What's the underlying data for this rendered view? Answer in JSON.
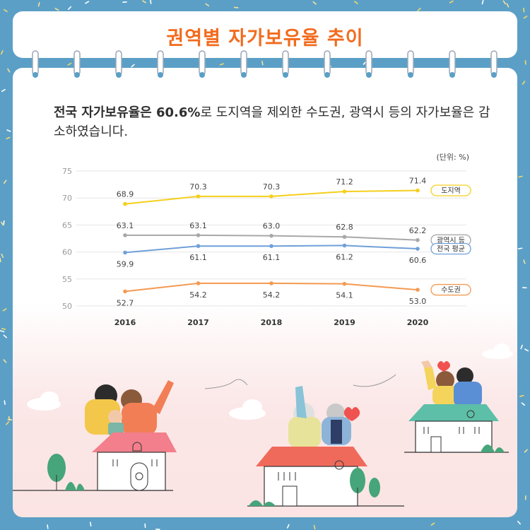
{
  "title": "권역별 자가보유율 추이",
  "intro": {
    "bold": "전국 자가보유율은 60.6%",
    "rest": "로 도지역을 제외한 수도권, 광역시 등의 자가보율은 감소하였습니다."
  },
  "colors": {
    "background": "#5b9fc6",
    "title": "#f26b1d",
    "do": "#f5cf1c",
    "metro": "#a8a8a8",
    "national": "#6fa0d8",
    "capital": "#f39a52"
  },
  "chart_data": {
    "type": "line",
    "unit_label": "(단위: %)",
    "categories": [
      "2016",
      "2017",
      "2018",
      "2019",
      "2020"
    ],
    "ylim": [
      50,
      75
    ],
    "yticks": [
      75,
      70,
      65,
      60,
      55,
      50
    ],
    "grid": true,
    "series": [
      {
        "name": "도지역",
        "values": [
          68.9,
          70.3,
          70.3,
          71.2,
          71.4
        ],
        "labels": [
          "68.9",
          "70.3",
          "70.3",
          "71.2",
          "71.4"
        ],
        "label_pos": "above",
        "color": "#f5cf1c"
      },
      {
        "name": "광역시 등",
        "values": [
          63.1,
          63.1,
          63.0,
          62.8,
          62.2
        ],
        "labels": [
          "63.1",
          "63.1",
          "63.0",
          "62.8",
          "62.2"
        ],
        "label_pos": "above",
        "color": "#a8a8a8"
      },
      {
        "name": "전국 평균",
        "values": [
          59.9,
          61.1,
          61.1,
          61.2,
          60.6
        ],
        "labels": [
          "59.9",
          "61.1",
          "61.1",
          "61.2",
          "60.6"
        ],
        "label_pos": "below",
        "color": "#6fa0d8"
      },
      {
        "name": "수도권",
        "values": [
          52.7,
          54.2,
          54.2,
          54.1,
          53.0
        ],
        "labels": [
          "52.7",
          "54.2",
          "54.2",
          "54.1",
          "53.0"
        ],
        "label_pos": "below",
        "color": "#f39a52"
      }
    ]
  }
}
